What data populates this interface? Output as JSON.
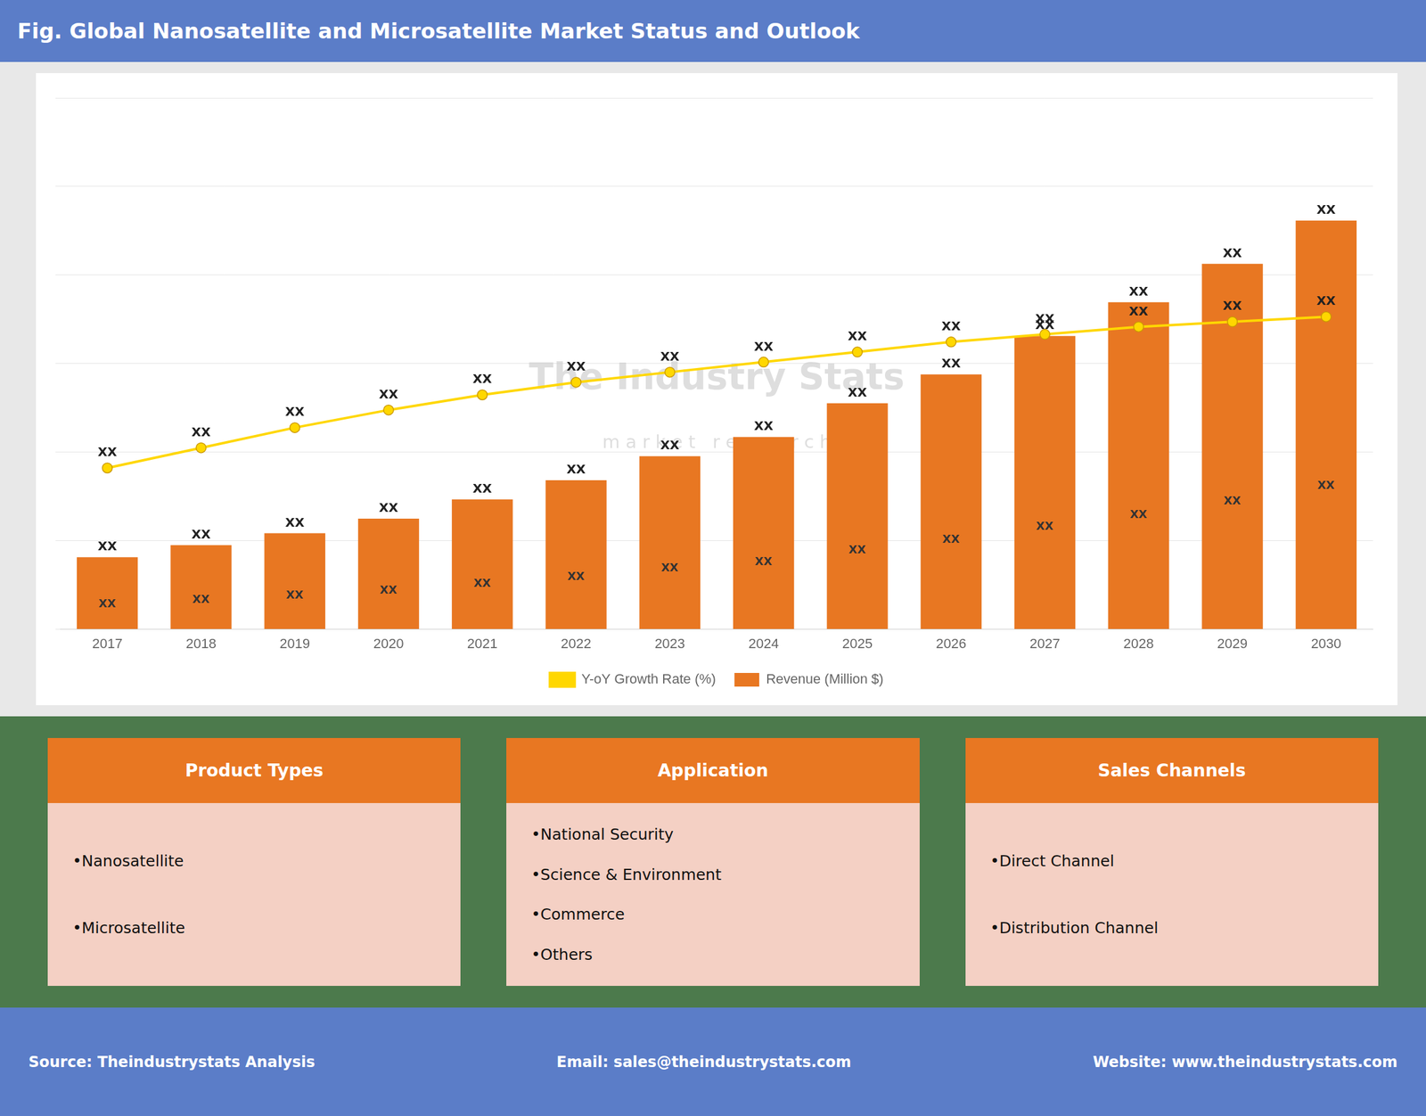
{
  "chart_data": {
    "type": "bar",
    "title": "Fig. Global Nanosatellite and Microsatellite Market Status and Outlook",
    "categories": [
      2017,
      2018,
      2019,
      2020,
      2021,
      2022,
      2023,
      2024,
      2025,
      2026,
      2027,
      2028,
      2029,
      2030
    ],
    "series": [
      {
        "name": "Revenue (Million $)",
        "type": "bar",
        "color": "#E87722",
        "values": [
          1.5,
          1.75,
          2.0,
          2.3,
          2.7,
          3.1,
          3.6,
          4.0,
          4.7,
          5.3,
          6.1,
          6.8,
          7.6,
          8.5
        ],
        "value_labels": [
          "XX",
          "XX",
          "XX",
          "XX",
          "XX",
          "XX",
          "XX",
          "XX",
          "XX",
          "XX",
          "XX",
          "XX",
          "XX",
          "XX"
        ]
      },
      {
        "name": "Y-oY Growth Rate (%)",
        "type": "line",
        "axis": "y2",
        "color": "#FFD700",
        "marker": "circle",
        "values": [
          3.2,
          3.6,
          4.0,
          4.35,
          4.65,
          4.9,
          5.1,
          5.3,
          5.5,
          5.7,
          5.85,
          6.0,
          6.1,
          6.2
        ],
        "value_labels": [
          "XX",
          "XX",
          "XX",
          "XX",
          "XX",
          "XX",
          "XX",
          "XX",
          "XX",
          "XX",
          "XX",
          "XX",
          "XX",
          "XX"
        ]
      }
    ],
    "ylim": [
      0,
      11.05
    ],
    "yticks": [
      0,
      1.8416666666666666,
      3.683333333333333,
      5.525,
      7.366666666666666,
      9.208333333333334,
      11.05
    ],
    "y2lim": [
      0,
      10.54
    ],
    "grid": true,
    "legend": "bottom",
    "tick_labels": "x",
    "annotations": [
      "The Industry Stats",
      "m a r k e t   r e s e a r c h"
    ],
    "info_boxes": [
      {
        "title": "Product Types",
        "items": [
          "•Nanosatellite",
          "•Microsatellite"
        ]
      },
      {
        "title": "Application",
        "items": [
          "•National Security",
          "•Science & Environment",
          "•Commerce",
          "•Others"
        ]
      },
      {
        "title": "Sales Channels",
        "items": [
          "•Direct Channel",
          "•Distribution Channel"
        ]
      }
    ],
    "footer": [
      "Source: Theindustrystats Analysis",
      "Email: sales@theindustrystats.com",
      "Website: www.theindustrystats.com"
    ]
  }
}
